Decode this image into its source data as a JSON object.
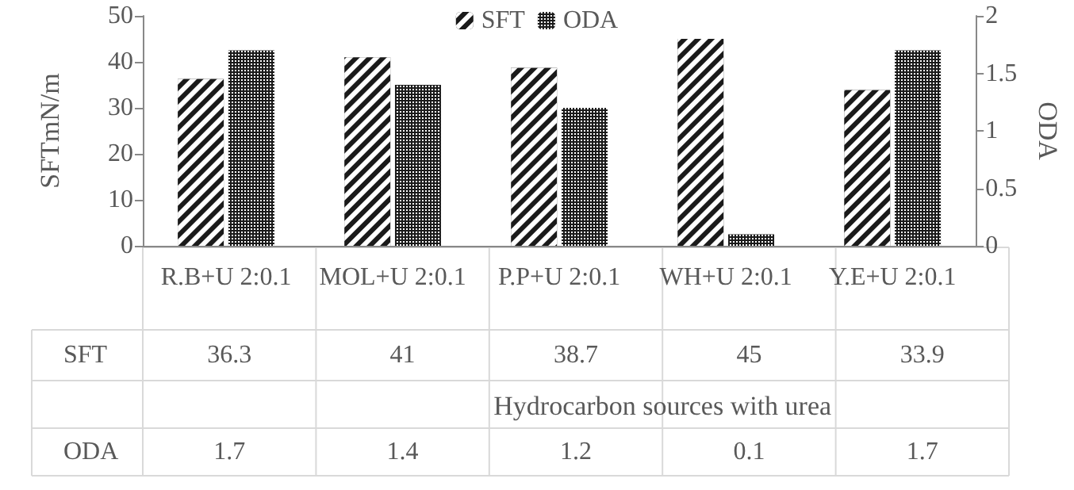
{
  "chart_data": {
    "type": "bar",
    "categories": [
      "R.B+U 2:0.1",
      "MOL+U 2:0.1",
      "P.P+U 2:0.1",
      "WH+U 2:0.1",
      "Y.E+U 2:0.1"
    ],
    "xlabel": "Hydrocarbon sources with urea",
    "ylabel": "SFTmN/m",
    "y2label": "ODA",
    "series": [
      {
        "name": "SFT",
        "color": "#1a1a1a",
        "values": [
          36.3,
          41,
          38.7,
          45,
          33.9
        ]
      },
      {
        "name": "ODA",
        "color": "#1a1a1a",
        "axis": "y2",
        "values": [
          1.7,
          1.4,
          1.2,
          0.1,
          1.7
        ]
      }
    ],
    "ylim": [
      0,
      50
    ],
    "yticks": [
      0,
      10,
      20,
      30,
      40,
      50
    ],
    "y2lim": [
      0,
      2
    ],
    "y2ticks": [
      0,
      0.5,
      1,
      1.5,
      2
    ],
    "legend": "top",
    "grid": false,
    "data_labels": true
  }
}
